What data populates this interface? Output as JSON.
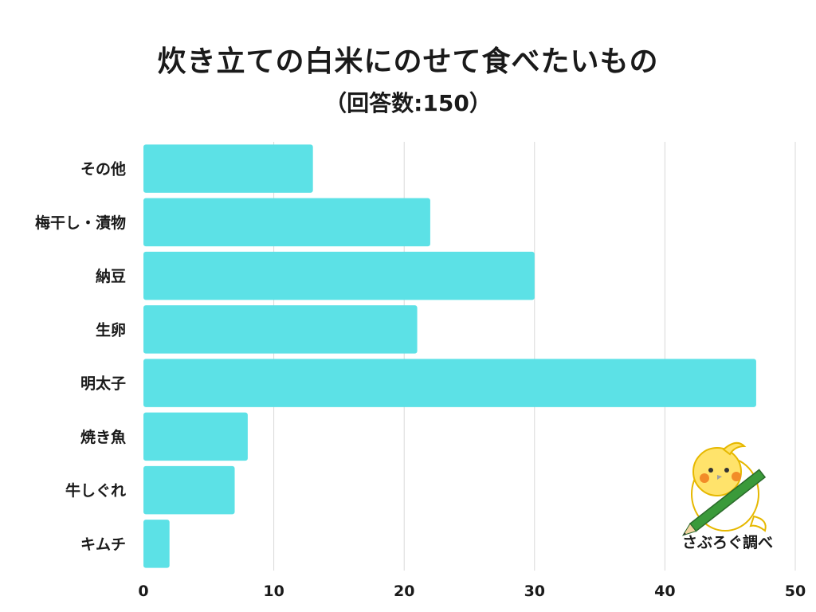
{
  "title": "炊き立ての白米にのせて食べたいもの",
  "subtitle": "（回答数:150）",
  "credit": "さぶろぐ調べ",
  "colors": {
    "bar": "#5ce1e6",
    "grid": "#d9d9d9",
    "text": "#1a1a1a"
  },
  "chart_data": {
    "type": "bar",
    "orientation": "horizontal",
    "categories": [
      "その他",
      "梅干し・漬物",
      "納豆",
      "生卵",
      "明太子",
      "焼き魚",
      "牛しぐれ",
      "キムチ"
    ],
    "values": [
      13,
      22,
      30,
      21,
      47,
      8,
      7,
      2
    ],
    "xlim": [
      0,
      50
    ],
    "xticks": [
      0,
      10,
      20,
      30,
      40,
      50
    ],
    "grid": true,
    "legend": "none"
  }
}
